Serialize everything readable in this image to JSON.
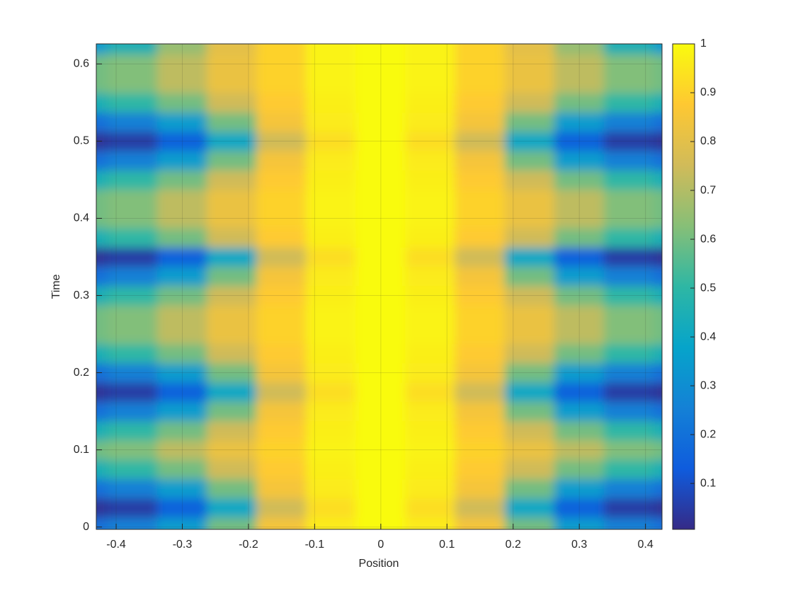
{
  "chart_data": {
    "type": "heatmap",
    "xlabel": "Position",
    "ylabel": "Time",
    "x": [
      -0.45,
      -0.375,
      -0.3,
      -0.225,
      -0.15,
      -0.075,
      0,
      0.075,
      0.15,
      0.225,
      0.3,
      0.375,
      0.45
    ],
    "y": [
      0,
      0.025,
      0.05,
      0.075,
      0.1,
      0.125,
      0.15,
      0.175,
      0.2,
      0.225,
      0.25,
      0.275,
      0.3,
      0.325,
      0.35,
      0.375,
      0.4,
      0.425,
      0.45,
      0.475,
      0.5,
      0.525,
      0.55,
      0.575,
      0.6,
      0.625
    ],
    "z": [
      [
        0.2,
        0.25,
        0.35,
        0.6,
        0.85,
        0.96,
        1,
        0.96,
        0.85,
        0.6,
        0.35,
        0.25,
        0.2
      ],
      [
        0.03,
        0.05,
        0.15,
        0.4,
        0.75,
        0.93,
        1,
        0.93,
        0.75,
        0.4,
        0.15,
        0.05,
        0.03
      ],
      [
        0.2,
        0.25,
        0.35,
        0.6,
        0.85,
        0.96,
        1,
        0.96,
        0.85,
        0.6,
        0.35,
        0.25,
        0.2
      ],
      [
        0.45,
        0.5,
        0.6,
        0.75,
        0.88,
        0.97,
        1,
        0.97,
        0.88,
        0.75,
        0.6,
        0.5,
        0.45
      ],
      [
        0.6,
        0.62,
        0.72,
        0.82,
        0.9,
        0.98,
        1,
        0.98,
        0.9,
        0.82,
        0.72,
        0.62,
        0.6
      ],
      [
        0.45,
        0.5,
        0.6,
        0.75,
        0.88,
        0.97,
        1,
        0.97,
        0.88,
        0.75,
        0.6,
        0.5,
        0.45
      ],
      [
        0.2,
        0.25,
        0.35,
        0.6,
        0.85,
        0.96,
        1,
        0.96,
        0.85,
        0.6,
        0.35,
        0.25,
        0.2
      ],
      [
        0.03,
        0.05,
        0.15,
        0.4,
        0.75,
        0.93,
        1,
        0.93,
        0.75,
        0.4,
        0.15,
        0.05,
        0.03
      ],
      [
        0.2,
        0.25,
        0.35,
        0.6,
        0.85,
        0.96,
        1,
        0.96,
        0.85,
        0.6,
        0.35,
        0.25,
        0.2
      ],
      [
        0.45,
        0.5,
        0.6,
        0.75,
        0.88,
        0.97,
        1,
        0.97,
        0.88,
        0.75,
        0.6,
        0.5,
        0.45
      ],
      [
        0.6,
        0.62,
        0.72,
        0.82,
        0.9,
        0.98,
        1,
        0.98,
        0.9,
        0.82,
        0.72,
        0.62,
        0.6
      ],
      [
        0.6,
        0.62,
        0.72,
        0.82,
        0.9,
        0.98,
        1,
        0.98,
        0.9,
        0.82,
        0.72,
        0.62,
        0.6
      ],
      [
        0.45,
        0.5,
        0.6,
        0.75,
        0.88,
        0.97,
        1,
        0.97,
        0.88,
        0.75,
        0.6,
        0.5,
        0.45
      ],
      [
        0.2,
        0.25,
        0.35,
        0.6,
        0.85,
        0.96,
        1,
        0.96,
        0.85,
        0.6,
        0.35,
        0.25,
        0.2
      ],
      [
        0.03,
        0.05,
        0.15,
        0.4,
        0.75,
        0.93,
        1,
        0.93,
        0.75,
        0.4,
        0.15,
        0.05,
        0.03
      ],
      [
        0.45,
        0.5,
        0.6,
        0.75,
        0.88,
        0.97,
        1,
        0.97,
        0.88,
        0.75,
        0.6,
        0.5,
        0.45
      ],
      [
        0.6,
        0.62,
        0.72,
        0.82,
        0.9,
        0.98,
        1,
        0.98,
        0.9,
        0.82,
        0.72,
        0.62,
        0.6
      ],
      [
        0.6,
        0.62,
        0.72,
        0.82,
        0.9,
        0.98,
        1,
        0.98,
        0.9,
        0.82,
        0.72,
        0.62,
        0.6
      ],
      [
        0.45,
        0.5,
        0.6,
        0.75,
        0.88,
        0.97,
        1,
        0.97,
        0.88,
        0.75,
        0.6,
        0.5,
        0.45
      ],
      [
        0.2,
        0.25,
        0.35,
        0.6,
        0.85,
        0.96,
        1,
        0.96,
        0.85,
        0.6,
        0.35,
        0.25,
        0.2
      ],
      [
        0.03,
        0.05,
        0.15,
        0.4,
        0.75,
        0.93,
        1,
        0.93,
        0.75,
        0.4,
        0.15,
        0.05,
        0.03
      ],
      [
        0.2,
        0.25,
        0.35,
        0.6,
        0.85,
        0.96,
        1,
        0.96,
        0.85,
        0.6,
        0.35,
        0.25,
        0.2
      ],
      [
        0.45,
        0.5,
        0.6,
        0.75,
        0.88,
        0.97,
        1,
        0.97,
        0.88,
        0.75,
        0.6,
        0.5,
        0.45
      ],
      [
        0.6,
        0.62,
        0.72,
        0.82,
        0.9,
        0.98,
        1,
        0.98,
        0.9,
        0.82,
        0.72,
        0.62,
        0.6
      ],
      [
        0.6,
        0.62,
        0.72,
        0.82,
        0.9,
        0.98,
        1,
        0.98,
        0.9,
        0.82,
        0.72,
        0.62,
        0.6
      ],
      [
        0.35,
        0.45,
        0.65,
        0.8,
        0.9,
        0.98,
        1,
        0.98,
        0.9,
        0.8,
        0.65,
        0.45,
        0.35
      ]
    ],
    "xlim": [
      -0.43,
      0.425
    ],
    "ylim": [
      -0.003,
      0.626
    ],
    "xticks": [
      -0.4,
      -0.3,
      -0.2,
      -0.1,
      0,
      0.1,
      0.2,
      0.3,
      0.4
    ],
    "yticks": [
      0,
      0.1,
      0.2,
      0.3,
      0.4,
      0.5,
      0.6
    ],
    "clim": [
      0.006,
      1
    ],
    "cticks": [
      0.1,
      0.2,
      0.3,
      0.4,
      0.5,
      0.6,
      0.7,
      0.8,
      0.9,
      1
    ],
    "colormap": [
      "#352a87",
      "#0f5cdd",
      "#1481d6",
      "#06a4ca",
      "#2eb7a4",
      "#87bf77",
      "#d1bb59",
      "#fec832",
      "#f9fb0e"
    ],
    "grid": true
  }
}
